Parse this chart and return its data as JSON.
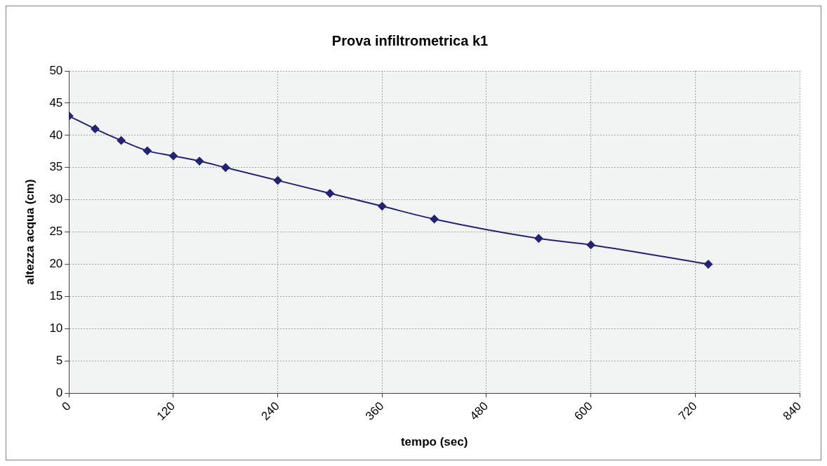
{
  "chart_data": {
    "type": "line",
    "title": "Prova infiltrometrica k1",
    "xlabel": "tempo (sec)",
    "ylabel": "altezza acqua (cm)",
    "x": [
      0,
      30,
      60,
      90,
      120,
      150,
      180,
      240,
      300,
      360,
      420,
      540,
      600,
      735
    ],
    "series": [
      {
        "color": "#232372",
        "values": [
          43,
          41,
          39.2,
          37.6,
          36.8,
          36,
          35,
          33,
          31,
          29,
          27,
          24,
          23,
          20
        ]
      }
    ],
    "xlim": [
      0,
      840
    ],
    "xticks": [
      0,
      120,
      240,
      360,
      480,
      600,
      720,
      840
    ],
    "ylim": [
      0,
      50
    ],
    "yticks": [
      0,
      5,
      10,
      15,
      20,
      25,
      30,
      35,
      40,
      45,
      50
    ],
    "grid": true,
    "legend": false,
    "marker": "diamond",
    "line_style": "solid"
  }
}
